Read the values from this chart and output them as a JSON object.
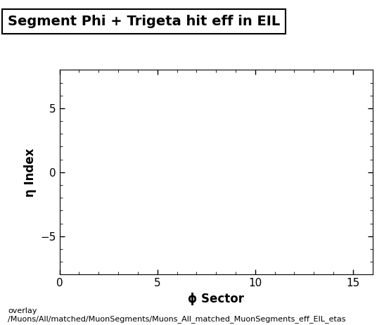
{
  "title": "Segment Phi + Trigeta hit eff in EIL",
  "xlabel": "ϕ Sector",
  "ylabel": "η Index",
  "xlim": [
    0,
    16
  ],
  "ylim": [
    -8,
    8
  ],
  "xticks": [
    0,
    5,
    10,
    15
  ],
  "yticks": [
    -5,
    0,
    5
  ],
  "background_color": "#ffffff",
  "plot_bg_color": "#ffffff",
  "footer_line1": "overlay",
  "footer_line2": "/Muons/All/matched/MuonSegments/Muons_All_matched_MuonSegments_eff_EIL_etas",
  "title_fontsize": 14,
  "axis_label_fontsize": 12,
  "tick_fontsize": 11,
  "footer_fontsize": 8
}
